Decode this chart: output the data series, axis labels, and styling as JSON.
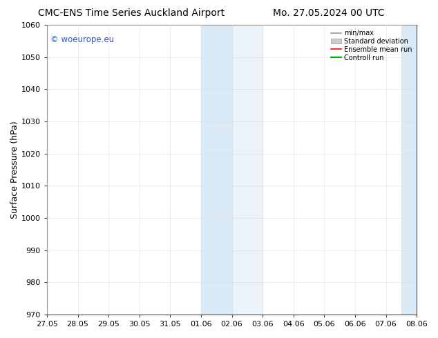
{
  "title_left": "CMC-ENS Time Series Auckland Airport",
  "title_right": "Mo. 27.05.2024 00 UTC",
  "ylabel": "Surface Pressure (hPa)",
  "ylim": [
    970,
    1060
  ],
  "yticks": [
    970,
    980,
    990,
    1000,
    1010,
    1020,
    1030,
    1040,
    1050,
    1060
  ],
  "xticks_labels": [
    "27.05",
    "28.05",
    "29.05",
    "30.05",
    "31.05",
    "01.06",
    "02.06",
    "03.06",
    "04.06",
    "05.06",
    "06.06",
    "07.06",
    "08.06"
  ],
  "xticks_values": [
    0,
    1,
    2,
    3,
    4,
    5,
    6,
    7,
    8,
    9,
    10,
    11,
    12
  ],
  "shaded_region_1": [
    5,
    6
  ],
  "shaded_region_2": [
    6,
    7
  ],
  "shaded_color_1": "#daeaf7",
  "shaded_color_2": "#daeaf7",
  "right_shaded_start": 11.5,
  "right_shaded_end": 12,
  "right_shaded_color": "#daeaf7",
  "watermark_text": "© woeurope.eu",
  "watermark_color": "#3355bb",
  "legend_labels": [
    "min/max",
    "Standard deviation",
    "Ensemble mean run",
    "Controll run"
  ],
  "legend_colors_line": [
    "#999999",
    "#bbbbbb",
    "#ff0000",
    "#00aa00"
  ],
  "background_color": "#ffffff",
  "plot_bg_color": "#ffffff",
  "grid_color": "#dddddd",
  "title_fontsize": 10,
  "axis_label_fontsize": 9,
  "tick_fontsize": 8
}
